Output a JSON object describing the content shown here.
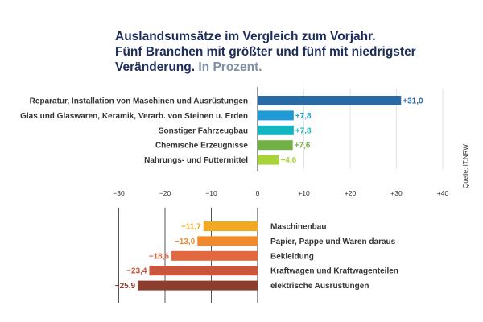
{
  "title_lines": [
    "Auslandsumsätze im Vergleich zum Vorjahr.",
    "Fünf Branchen mit größter und fünf mit niedrigster",
    "Veränderung."
  ],
  "title_unit": "In Prozent.",
  "source": "Quelle: IT.NRW",
  "chart_data": {
    "type": "bar",
    "orientation": "horizontal",
    "title": "Auslandsumsätze im Vergleich zum Vorjahr. Fünf Branchen mit größter und fünf mit niedrigster Veränderung. In Prozent.",
    "xlim": [
      -30,
      40
    ],
    "xticks": [
      -30,
      -20,
      -10,
      0,
      10,
      20,
      30,
      40
    ],
    "xtick_labels": [
      "−30",
      "−20",
      "−10",
      "0",
      "+10",
      "+20",
      "+30",
      "+40"
    ],
    "grid": true,
    "groups": [
      {
        "name": "",
        "bars": [
          {
            "label": "Reparatur, Installation von Maschinen und Ausrüstungen",
            "value": 31.0,
            "value_label": "+31,0",
            "color": "#2a6aa3"
          },
          {
            "label": "Glas und Glaswaren, Keramik, Verarb. von Steinen u. Erden",
            "value": 7.8,
            "value_label": "+7,8",
            "color": "#1e9bd5"
          },
          {
            "label": "Sonstiger Fahrzeugbau",
            "value": 7.8,
            "value_label": "+7,8",
            "color": "#14b5c0"
          },
          {
            "label": "Chemische Erzeugnisse",
            "value": 7.6,
            "value_label": "+7,6",
            "color": "#71b044"
          },
          {
            "label": "Nahrungs- und Futtermittel",
            "value": 4.6,
            "value_label": "+4,6",
            "color": "#a8d43a"
          }
        ]
      },
      {
        "name": "",
        "bars": [
          {
            "label": "Maschinenbau",
            "value": -11.7,
            "value_label": "−11,7",
            "color": "#f2a922"
          },
          {
            "label": "Papier, Pappe und Waren daraus",
            "value": -13.0,
            "value_label": "−13,0",
            "color": "#f08a2c"
          },
          {
            "label": "Bekleidung",
            "value": -18.6,
            "value_label": "−18,6",
            "color": "#e2683f"
          },
          {
            "label": "Kraftwagen und Kraftwagenteilen",
            "value": -23.4,
            "value_label": "−23,4",
            "color": "#c9553c"
          },
          {
            "label": "elektrische Ausrüstungen",
            "value": -25.9,
            "value_label": "−25,9",
            "color": "#8c3d2d"
          }
        ]
      }
    ]
  }
}
